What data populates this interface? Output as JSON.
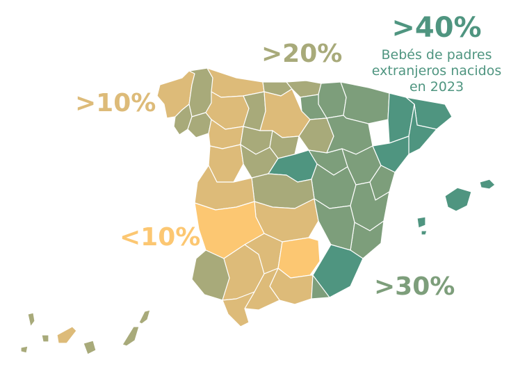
{
  "title": {
    "value": ">40%",
    "subtitle": "Bebés de padres\nextranjeros nacidos\nen 2023"
  },
  "legend_labels": [
    ">20%",
    ">10%",
    "<10%",
    ">30%"
  ],
  "colors": {
    "lt10": "#fcc772",
    "gt10": "#ddbb79",
    "gt20": "#a8aa7a",
    "gt30": "#7d9e7b",
    "gt40": "#4f9580",
    "title": "#4f9580",
    "label_gt20": "#a8aa7a",
    "label_gt10": "#ddbb79",
    "label_lt10": "#fcc772",
    "label_gt30": "#7d9e7b"
  }
}
